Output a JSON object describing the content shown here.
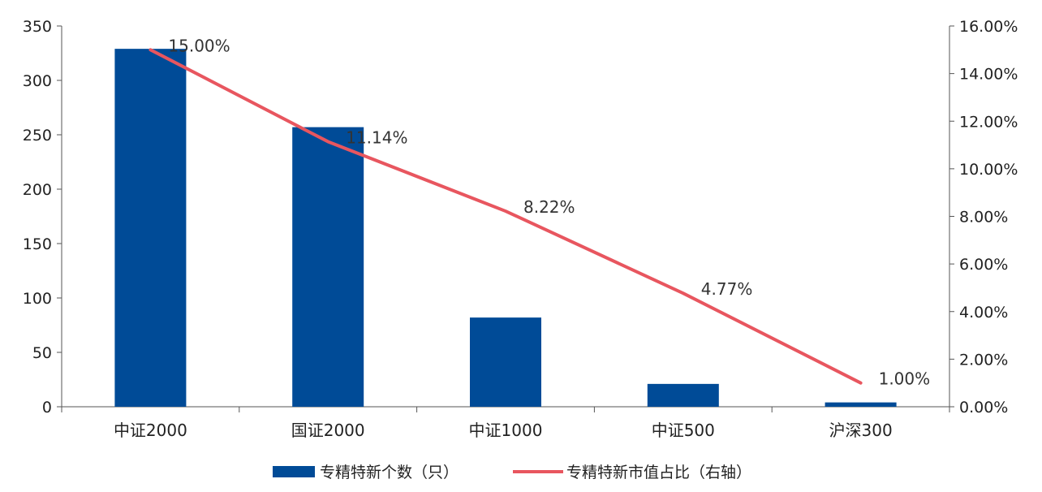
{
  "chart_data": {
    "type": "bar",
    "categories": [
      "中证2000",
      "国证2000",
      "中证1000",
      "中证500",
      "沪深300"
    ],
    "series": [
      {
        "name": "专精特新个数（只）",
        "type": "bar",
        "axis": "left",
        "color": "#004B97",
        "values": [
          329,
          257,
          82,
          21,
          4
        ]
      },
      {
        "name": "专精特新市值占比（右轴）",
        "type": "line",
        "axis": "right",
        "color": "#E8565F",
        "values": [
          15.0,
          11.14,
          8.22,
          4.77,
          1.0
        ],
        "labels": [
          "15.00%",
          "11.14%",
          "8.22%",
          "4.77%",
          "1.00%"
        ]
      }
    ],
    "y_left": {
      "min": 0,
      "max": 350,
      "step": 50,
      "ticks": [
        "0",
        "50",
        "100",
        "150",
        "200",
        "250",
        "300",
        "350"
      ]
    },
    "y_right": {
      "min": 0,
      "max": 16,
      "step": 2,
      "ticks": [
        "0.00%",
        "2.00%",
        "4.00%",
        "6.00%",
        "8.00%",
        "10.00%",
        "12.00%",
        "14.00%",
        "16.00%"
      ]
    },
    "grid": false,
    "legend_position": "bottom"
  }
}
